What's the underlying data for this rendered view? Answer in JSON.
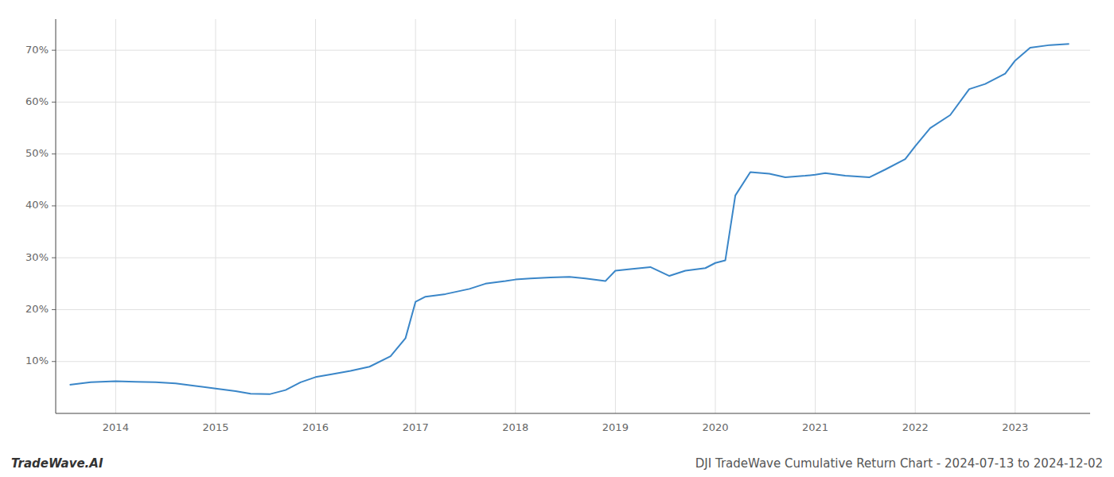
{
  "chart_data": {
    "type": "line",
    "title": "DJI TradeWave Cumulative Return Chart - 2024-07-13 to 2024-12-02",
    "annotations": [
      "TradeWave.AI"
    ],
    "color": "#3a86c8",
    "grid": true,
    "x": [
      2013.54,
      2013.75,
      2014.0,
      2014.2,
      2014.4,
      2014.6,
      2014.8,
      2015.0,
      2015.2,
      2015.35,
      2015.54,
      2015.7,
      2015.85,
      2016.0,
      2016.15,
      2016.35,
      2016.54,
      2016.75,
      2016.9,
      2017.0,
      2017.1,
      2017.3,
      2017.54,
      2017.7,
      2017.9,
      2018.0,
      2018.15,
      2018.35,
      2018.54,
      2018.7,
      2018.9,
      2019.0,
      2019.15,
      2019.35,
      2019.54,
      2019.7,
      2019.9,
      2020.0,
      2020.1,
      2020.2,
      2020.35,
      2020.54,
      2020.7,
      2020.9,
      2021.0,
      2021.1,
      2021.3,
      2021.54,
      2021.7,
      2021.9,
      2022.0,
      2022.15,
      2022.35,
      2022.54,
      2022.7,
      2022.9,
      2023.0,
      2023.15,
      2023.35,
      2023.54
    ],
    "values": [
      5.5,
      6.0,
      6.2,
      6.1,
      6.0,
      5.8,
      5.3,
      4.8,
      4.3,
      3.8,
      3.7,
      4.5,
      6.0,
      7.0,
      7.5,
      8.2,
      9.0,
      11.0,
      14.5,
      21.5,
      22.5,
      23.0,
      24.0,
      25.0,
      25.5,
      25.8,
      26.0,
      26.2,
      26.3,
      26.0,
      25.5,
      27.5,
      27.8,
      28.2,
      26.5,
      27.5,
      28.0,
      29.0,
      29.5,
      42.0,
      46.5,
      46.2,
      45.5,
      45.8,
      46.0,
      46.3,
      45.8,
      45.5,
      47.0,
      49.0,
      51.5,
      55.0,
      57.5,
      62.5,
      63.5,
      65.5,
      68.0,
      70.5,
      71.0,
      71.2
    ],
    "xlim": [
      2013.4,
      2023.75
    ],
    "ylim": [
      0,
      76
    ],
    "xticks": [
      2014,
      2015,
      2016,
      2017,
      2018,
      2019,
      2020,
      2021,
      2022,
      2023
    ],
    "yticks": [
      {
        "value": 10,
        "label": "10%"
      },
      {
        "value": 20,
        "label": "20%"
      },
      {
        "value": 30,
        "label": "30%"
      },
      {
        "value": 40,
        "label": "40%"
      },
      {
        "value": 50,
        "label": "50%"
      },
      {
        "value": 60,
        "label": "60%"
      },
      {
        "value": 70,
        "label": "70%"
      }
    ]
  }
}
